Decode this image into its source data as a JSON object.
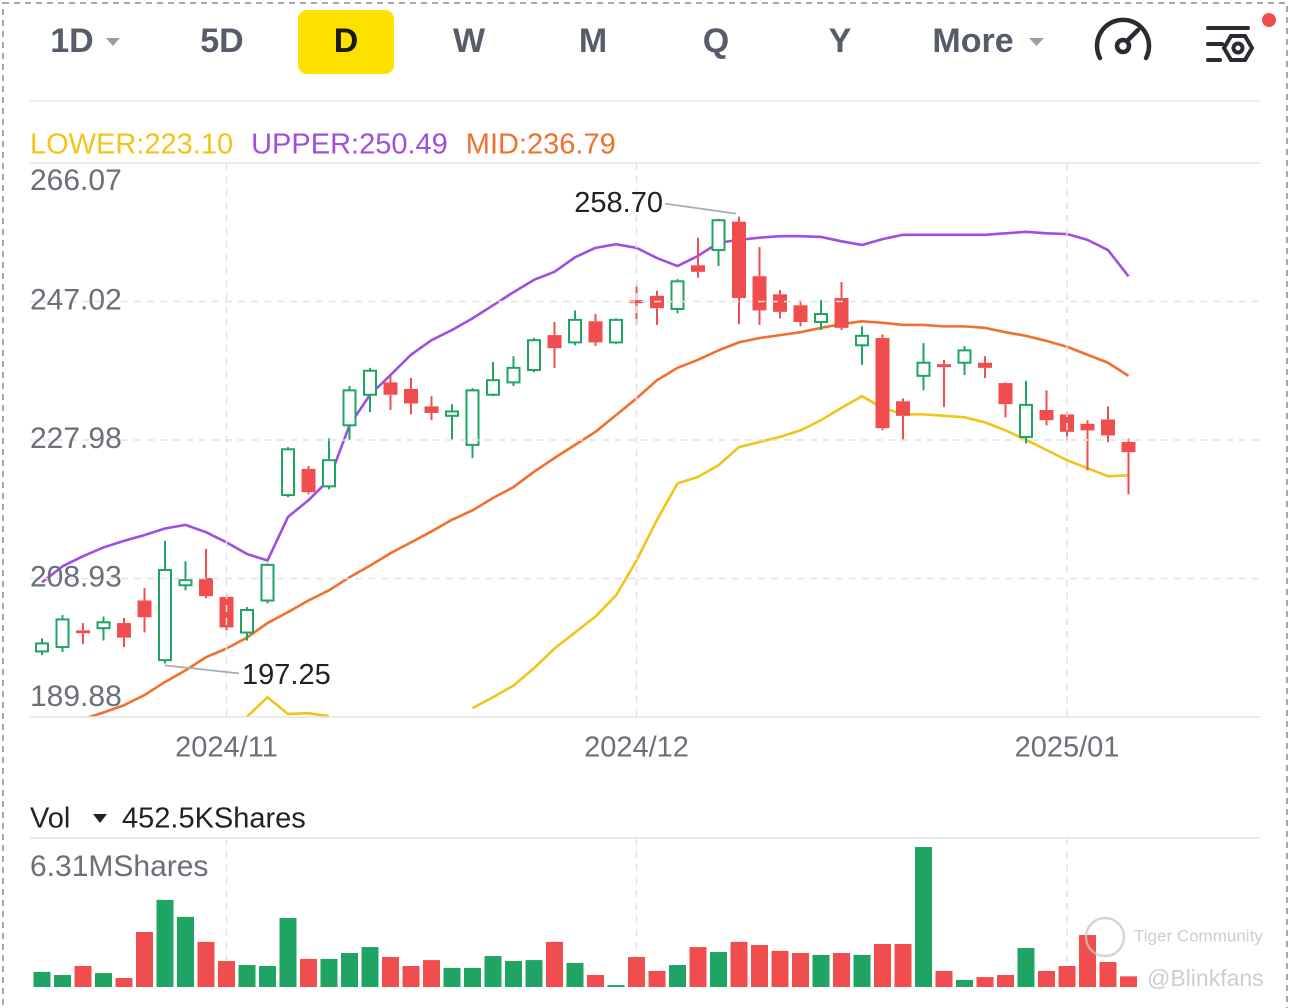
{
  "tabs": [
    "1D",
    "5D",
    "D",
    "W",
    "M",
    "Q",
    "Y",
    "More"
  ],
  "chart_data": [
    {
      "type": "candlestick",
      "categories": [
        null,
        null,
        null,
        null,
        null,
        null,
        null,
        null,
        null,
        "2024/11",
        null,
        null,
        null,
        null,
        null,
        null,
        null,
        null,
        null,
        null,
        null,
        null,
        null,
        null,
        null,
        null,
        null,
        null,
        null,
        "2024/12",
        null,
        null,
        null,
        null,
        null,
        null,
        null,
        null,
        null,
        null,
        null,
        null,
        null,
        null,
        null,
        null,
        null,
        null,
        null,
        null,
        "2025/01",
        null,
        null,
        null
      ],
      "open": [
        198.9,
        199.5,
        201.8,
        202.1,
        202.8,
        205.9,
        197.7,
        208.0,
        209.0,
        206.4,
        201.5,
        205.9,
        220.4,
        224.0,
        221.6,
        230.0,
        234.2,
        235.9,
        235.0,
        232.6,
        231.3,
        227.3,
        234.2,
        235.9,
        237.6,
        242.4,
        241.4,
        244.3,
        241.4,
        247.2,
        247.8,
        246.0,
        252.0,
        254.1,
        258.0,
        250.5,
        248.0,
        246.5,
        244.2,
        247.5,
        241.0,
        242.0,
        233.3,
        236.8,
        238.4,
        238.6,
        238.6,
        235.8,
        228.4,
        232.1,
        231.5,
        230.2,
        230.8,
        227.7
      ],
      "high": [
        200.7,
        203.9,
        202.8,
        203.7,
        203.5,
        207.6,
        214.1,
        211.3,
        213.0,
        206.8,
        205.0,
        211.0,
        227.0,
        224.4,
        228.2,
        235.4,
        237.9,
        236.8,
        236.5,
        234.0,
        232.9,
        235.1,
        238.7,
        239.5,
        242.0,
        244.2,
        245.8,
        245.3,
        244.7,
        249.4,
        248.5,
        250.1,
        255.8,
        258.4,
        258.7,
        254.5,
        248.6,
        247.2,
        247.2,
        249.7,
        243.6,
        242.5,
        233.7,
        241.3,
        239.0,
        240.9,
        239.5,
        235.9,
        236.1,
        234.8,
        231.8,
        230.7,
        232.6,
        228.2
      ],
      "low": [
        198.4,
        198.8,
        199.9,
        200.4,
        199.5,
        201.5,
        197.25,
        207.3,
        206.2,
        201.8,
        200.4,
        205.5,
        220.1,
        220.5,
        221.2,
        228.0,
        231.8,
        232.1,
        231.5,
        230.7,
        228.0,
        225.5,
        234.0,
        235.4,
        237.3,
        237.9,
        241.0,
        240.9,
        241.2,
        243.8,
        243.8,
        245.4,
        250.3,
        251.9,
        243.9,
        243.8,
        244.7,
        243.6,
        243.1,
        243.1,
        238.3,
        229.3,
        228.0,
        234.8,
        232.5,
        236.9,
        236.5,
        231.1,
        227.5,
        230.0,
        228.0,
        223.8,
        227.7,
        220.5
      ],
      "close": [
        200.0,
        203.3,
        201.4,
        202.9,
        200.8,
        203.6,
        210.1,
        208.7,
        206.5,
        202.2,
        204.6,
        210.8,
        226.7,
        220.8,
        225.2,
        234.8,
        237.5,
        234.2,
        233.0,
        231.7,
        231.9,
        234.8,
        236.2,
        237.9,
        241.7,
        240.6,
        244.5,
        241.4,
        244.5,
        246.8,
        246.1,
        249.8,
        251.1,
        258.2,
        247.5,
        245.8,
        245.6,
        244.2,
        245.3,
        243.4,
        242.3,
        229.6,
        231.3,
        238.6,
        238.0,
        240.3,
        237.9,
        232.9,
        232.8,
        230.7,
        229.1,
        229.3,
        228.6,
        226.3
      ],
      "up_color": "#1fa463",
      "down_color": "#f04e4e",
      "series": [
        {
          "name": "LOWER:223.10",
          "color": "#f0c419",
          "values": [
            null,
            null,
            null,
            null,
            null,
            null,
            null,
            null,
            null,
            null,
            189.9,
            192.6,
            190.3,
            190.4,
            190.0,
            null,
            null,
            null,
            null,
            null,
            null,
            191.1,
            192.6,
            194.2,
            196.6,
            199.3,
            201.5,
            203.7,
            206.6,
            211.4,
            217.0,
            222.0,
            222.9,
            224.5,
            227.0,
            227.7,
            228.4,
            229.3,
            230.7,
            232.4,
            234.0,
            232.4,
            231.5,
            231.5,
            231.3,
            231.1,
            230.4,
            229.3,
            228.0,
            226.6,
            225.2,
            224.1,
            223.0,
            223.1
          ]
        },
        {
          "name": "UPPER:250.49",
          "color": "#a04ee0",
          "values": [
            208.4,
            210.6,
            212.0,
            213.2,
            214.1,
            214.9,
            215.8,
            216.3,
            215.3,
            213.9,
            212.3,
            211.4,
            217.4,
            219.7,
            222.5,
            230.0,
            234.2,
            236.9,
            239.7,
            241.7,
            243.1,
            244.7,
            246.5,
            248.3,
            250.0,
            251.1,
            253.1,
            254.4,
            254.9,
            254.4,
            253.0,
            251.9,
            253.3,
            255.1,
            255.5,
            255.8,
            256.0,
            256.0,
            255.9,
            255.3,
            254.8,
            255.6,
            256.2,
            256.2,
            256.2,
            256.2,
            256.2,
            256.4,
            256.6,
            256.4,
            256.3,
            255.5,
            254.1,
            250.49
          ]
        },
        {
          "name": "MID:236.79",
          "color": "#f0702e",
          "values": [
            null,
            null,
            189.6,
            190.5,
            191.5,
            192.9,
            194.7,
            196.3,
            198.1,
            199.3,
            200.8,
            202.8,
            204.3,
            205.9,
            207.3,
            209.1,
            210.7,
            212.4,
            213.9,
            215.4,
            217.0,
            218.3,
            220.0,
            221.5,
            223.6,
            225.5,
            227.3,
            229.1,
            231.4,
            233.7,
            236.2,
            237.9,
            239.0,
            240.3,
            241.4,
            242.0,
            242.4,
            242.8,
            243.4,
            243.9,
            244.3,
            244.1,
            243.8,
            243.8,
            243.6,
            243.6,
            243.4,
            242.8,
            242.3,
            241.6,
            240.8,
            239.7,
            238.6,
            236.79
          ]
        }
      ],
      "high_label": "258.70",
      "low_label": "197.25",
      "ylim": [
        189.88,
        266.07
      ],
      "yticks": [
        266.07,
        247.02,
        227.98,
        208.93,
        189.88
      ],
      "grid": true
    },
    {
      "type": "bar",
      "title": "Vol",
      "subtitle": "452.5KShares",
      "values": [
        0.64,
        0.51,
        0.89,
        0.59,
        0.38,
        2.33,
        3.69,
        2.97,
        1.91,
        1.1,
        0.93,
        0.89,
        2.92,
        1.19,
        1.19,
        1.44,
        1.69,
        1.27,
        0.89,
        1.14,
        0.81,
        0.81,
        1.31,
        1.1,
        1.14,
        1.91,
        1.02,
        0.51,
        0.08,
        1.27,
        0.68,
        0.93,
        1.69,
        1.48,
        1.91,
        1.78,
        1.53,
        1.44,
        1.36,
        1.44,
        1.36,
        1.82,
        1.82,
        5.93,
        0.68,
        0.3,
        0.42,
        0.51,
        1.65,
        0.68,
        0.89,
        2.2,
        1.06,
        0.45
      ],
      "ylim": [
        0,
        6.31
      ],
      "yticks": [
        {
          "value": 6.31,
          "label": "6.31MShares"
        }
      ]
    }
  ],
  "watermark": [
    "Tiger Community",
    "@Blinkfans"
  ]
}
